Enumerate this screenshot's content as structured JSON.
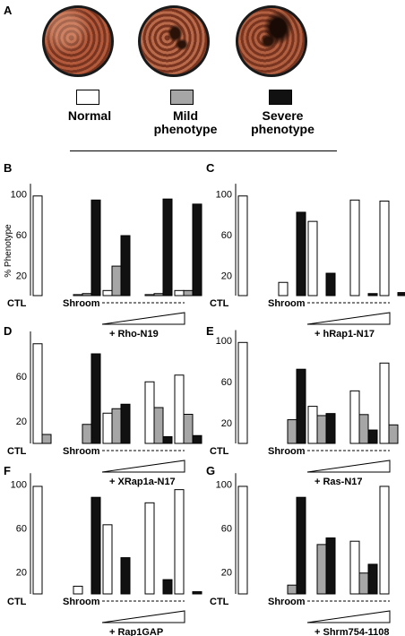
{
  "panel_A": {
    "letter": "A",
    "legend": [
      {
        "label_lines": [
          "Normal"
        ],
        "fill": "#ffffff"
      },
      {
        "label_lines": [
          "Mild",
          "phenotype"
        ],
        "fill": "#a6a6a6"
      },
      {
        "label_lines": [
          "Severe",
          "phenotype"
        ],
        "fill": "#111111"
      }
    ]
  },
  "chart_data": [
    {
      "letter": "B",
      "type": "bar",
      "ylabel": "% Phenotype",
      "yticks": [
        20,
        60,
        100
      ],
      "ylim": [
        0,
        110
      ],
      "categories": [
        "CTL",
        "Shroom"
      ],
      "treatment": "+ Rho-N19",
      "groups": [
        [
          98,
          0,
          0
        ],
        [
          1,
          2,
          94
        ],
        [
          5,
          29,
          59
        ],
        [
          1,
          2,
          95
        ],
        [
          5,
          5,
          90
        ]
      ]
    },
    {
      "letter": "C",
      "type": "bar",
      "ylabel": "",
      "yticks": [
        20,
        60,
        100
      ],
      "ylim": [
        0,
        110
      ],
      "categories": [
        "CTL",
        "Shroom"
      ],
      "treatment": "+ hRap1-N17",
      "groups": [
        [
          98,
          0,
          0
        ],
        [
          13,
          0,
          82
        ],
        [
          73,
          0,
          22
        ],
        [
          94,
          0,
          2
        ],
        [
          93,
          0,
          3
        ]
      ]
    },
    {
      "letter": "D",
      "type": "bar",
      "ylabel": "",
      "yticks": [
        20,
        60
      ],
      "ylim": [
        0,
        100
      ],
      "categories": [
        "CTL",
        "Shroom"
      ],
      "treatment": "+ XRap1a-N17",
      "groups": [
        [
          89,
          8,
          0
        ],
        [
          0,
          17,
          80
        ],
        [
          27,
          31,
          35
        ],
        [
          55,
          32,
          6
        ],
        [
          61,
          26,
          7
        ]
      ]
    },
    {
      "letter": "E",
      "type": "bar",
      "ylabel": "",
      "yticks": [
        20,
        60,
        100
      ],
      "ylim": [
        0,
        110
      ],
      "categories": [
        "CTL",
        "Shroom"
      ],
      "treatment": "+ Ras-N17",
      "groups": [
        [
          98,
          0,
          0
        ],
        [
          0,
          23,
          72
        ],
        [
          36,
          27,
          29
        ],
        [
          51,
          28,
          13
        ],
        [
          78,
          18,
          0
        ]
      ]
    },
    {
      "letter": "F",
      "type": "bar",
      "ylabel": "",
      "yticks": [
        20,
        60,
        100
      ],
      "ylim": [
        0,
        110
      ],
      "categories": [
        "CTL",
        "Shroom"
      ],
      "treatment": "+ Rap1GAP",
      "groups": [
        [
          98,
          0,
          0
        ],
        [
          7,
          0,
          88
        ],
        [
          63,
          0,
          33
        ],
        [
          83,
          0,
          13
        ],
        [
          95,
          0,
          2
        ]
      ]
    },
    {
      "letter": "G",
      "type": "bar",
      "ylabel": "",
      "yticks": [
        20,
        60,
        100
      ],
      "ylim": [
        0,
        110
      ],
      "categories": [
        "CTL",
        "Shroom"
      ],
      "treatment": "+ Shrm754-1108",
      "groups": [
        [
          98,
          0,
          0
        ],
        [
          0,
          8,
          88
        ],
        [
          0,
          45,
          51
        ],
        [
          48,
          19,
          27
        ],
        [
          98,
          0,
          0
        ]
      ]
    }
  ]
}
